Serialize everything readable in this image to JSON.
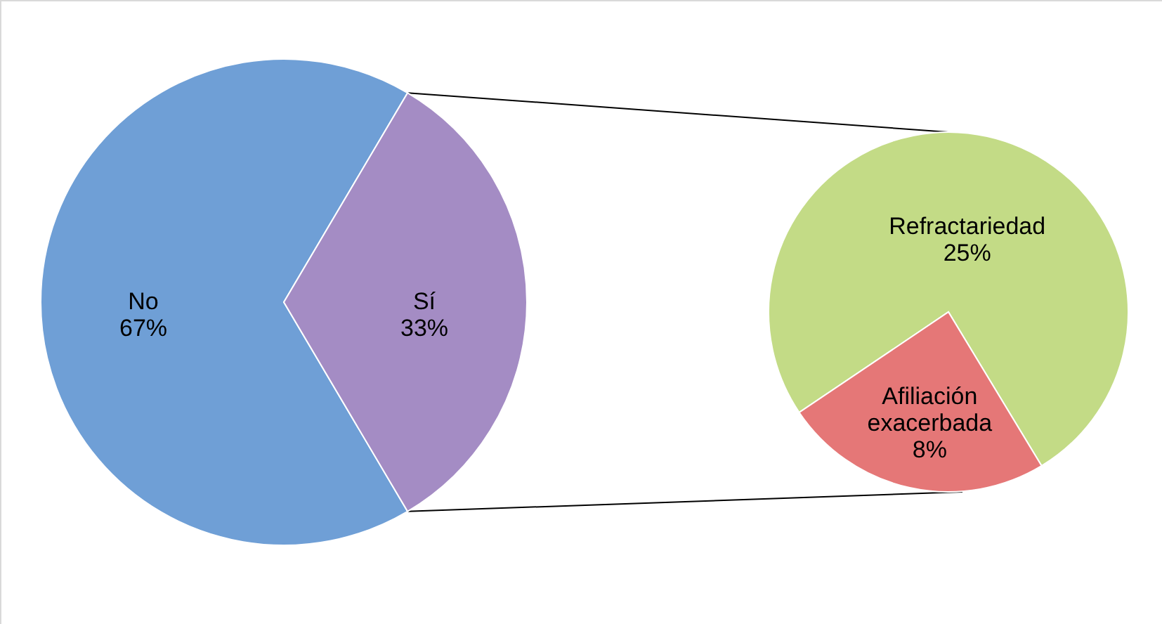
{
  "chart_data": [
    {
      "type": "pie",
      "categories": [
        "No",
        "Sí"
      ],
      "values": [
        67,
        33
      ],
      "colors": [
        "#6f9fd6",
        "#a48cc4"
      ],
      "value_labels": [
        "67%",
        "33%"
      ]
    },
    {
      "type": "pie",
      "categories": [
        "Refractariedad",
        "Afiliación exacerbada"
      ],
      "values": [
        25,
        8
      ],
      "colors": [
        "#c3db86",
        "#e57777"
      ],
      "value_labels": [
        "25%",
        "8%"
      ]
    }
  ]
}
